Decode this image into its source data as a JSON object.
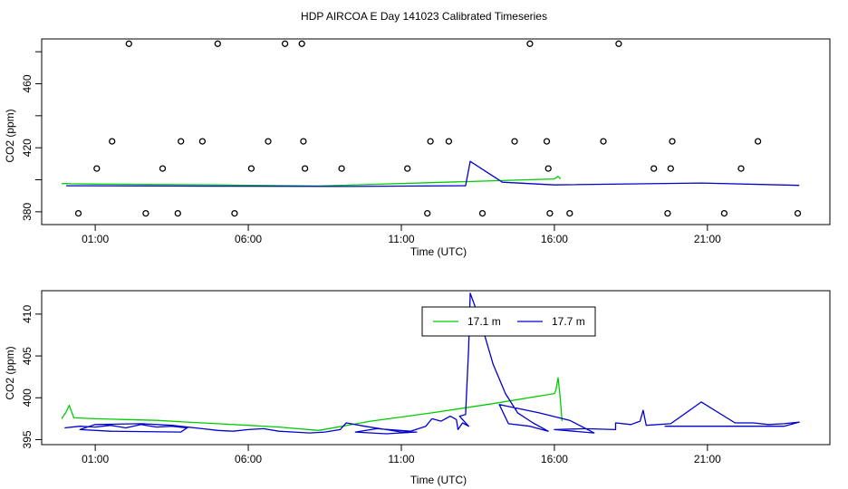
{
  "title": "HDP AIRCOA E  Day 141023  Calibrated Timeseries",
  "colors": {
    "green": "#00cc00",
    "blue": "#0000cc",
    "axis": "#000000"
  },
  "chart_data": [
    {
      "type": "scatter",
      "xlabel": "Time (UTC)",
      "ylabel": "CO2 (ppm)",
      "xlim": [
        -0.75,
        25.0
      ],
      "ylim": [
        372,
        488
      ],
      "x_ticks": [
        {
          "v": 1,
          "label": "01:00"
        },
        {
          "v": 6,
          "label": "06:00"
        },
        {
          "v": 11,
          "label": "11:00"
        },
        {
          "v": 16,
          "label": "16:00"
        },
        {
          "v": 21,
          "label": "21:00"
        }
      ],
      "y_ticks": [
        {
          "v": 380,
          "label": "380"
        },
        {
          "v": 420,
          "label": "420"
        },
        {
          "v": 460,
          "label": "460"
        }
      ],
      "points": [
        [
          0.45,
          379
        ],
        [
          1.05,
          407
        ],
        [
          1.55,
          424
        ],
        [
          2.1,
          485
        ],
        [
          2.65,
          379
        ],
        [
          3.2,
          407
        ],
        [
          3.7,
          379
        ],
        [
          3.8,
          424
        ],
        [
          4.5,
          424
        ],
        [
          5.0,
          485
        ],
        [
          5.55,
          379
        ],
        [
          6.1,
          407
        ],
        [
          6.65,
          424
        ],
        [
          7.2,
          485
        ],
        [
          7.75,
          485
        ],
        [
          7.8,
          424
        ],
        [
          7.85,
          407
        ],
        [
          9.05,
          407
        ],
        [
          11.2,
          407
        ],
        [
          11.85,
          379
        ],
        [
          11.95,
          424
        ],
        [
          12.55,
          424
        ],
        [
          13.65,
          379
        ],
        [
          14.7,
          424
        ],
        [
          15.2,
          485
        ],
        [
          15.75,
          424
        ],
        [
          15.8,
          407
        ],
        [
          15.85,
          379
        ],
        [
          16.5,
          379
        ],
        [
          17.6,
          424
        ],
        [
          18.1,
          485
        ],
        [
          19.25,
          407
        ],
        [
          19.7,
          379
        ],
        [
          19.8,
          407
        ],
        [
          19.85,
          424
        ],
        [
          21.55,
          379
        ],
        [
          22.1,
          407
        ],
        [
          22.65,
          424
        ],
        [
          23.95,
          379
        ]
      ],
      "series": [
        {
          "name": "17.1 m",
          "color": "#00cc00",
          "points": [
            [
              -0.1,
              397.5
            ],
            [
              0.05,
              397.7
            ],
            [
              0.2,
              397.5
            ],
            [
              1.0,
              397.3
            ],
            [
              5.0,
              396.8
            ],
            [
              8.3,
              396.1
            ],
            [
              16.0,
              400.5
            ],
            [
              16.12,
              402.1
            ],
            [
              16.2,
              400.5
            ]
          ]
        },
        {
          "name": "17.7 m",
          "color": "#0000cc",
          "points": [
            [
              0.05,
              396.3
            ],
            [
              5.0,
              396.0
            ],
            [
              9.2,
              395.8
            ],
            [
              13.1,
              396.3
            ],
            [
              13.25,
              411.5
            ],
            [
              14.3,
              398.5
            ],
            [
              16.0,
              396.8
            ],
            [
              20.8,
              398.0
            ],
            [
              24.0,
              396.5
            ]
          ]
        }
      ]
    },
    {
      "type": "line",
      "xlabel": "Time (UTC)",
      "ylabel": "CO2 (ppm)",
      "xlim": [
        -0.75,
        25.0
      ],
      "ylim": [
        394.4,
        412.8
      ],
      "x_ticks": [
        {
          "v": 1,
          "label": "01:00"
        },
        {
          "v": 6,
          "label": "06:00"
        },
        {
          "v": 11,
          "label": "11:00"
        },
        {
          "v": 16,
          "label": "16:00"
        },
        {
          "v": 21,
          "label": "21:00"
        }
      ],
      "y_ticks": [
        {
          "v": 395,
          "label": "395"
        },
        {
          "v": 400,
          "label": "400"
        },
        {
          "v": 405,
          "label": "405"
        },
        {
          "v": 410,
          "label": "410"
        }
      ],
      "legend": {
        "position": "top-center"
      },
      "series": [
        {
          "name": "17.1 m",
          "color": "#00cc00",
          "points": [
            [
              -0.1,
              397.5
            ],
            [
              0.05,
              398.3
            ],
            [
              0.15,
              399.1
            ],
            [
              0.3,
              397.6
            ],
            [
              1.0,
              397.5
            ],
            [
              2.0,
              397.4
            ],
            [
              3.0,
              397.3
            ],
            [
              4.0,
              397.1
            ],
            [
              5.0,
              396.9
            ],
            [
              6.0,
              396.7
            ],
            [
              7.0,
              396.5
            ],
            [
              8.3,
              396.1
            ],
            [
              10.0,
              397.2
            ],
            [
              12.0,
              398.2
            ],
            [
              14.0,
              399.3
            ],
            [
              15.5,
              400.2
            ],
            [
              16.0,
              400.5
            ],
            [
              16.05,
              400.9
            ],
            [
              16.12,
              402.4
            ],
            [
              16.18,
              400.4
            ],
            [
              16.25,
              397.2
            ]
          ]
        },
        {
          "name": "17.7 m",
          "color": "#0000cc",
          "points": [
            [
              0.0,
              396.4
            ],
            [
              0.5,
              396.6
            ],
            [
              1.0,
              396.5
            ],
            [
              1.5,
              396.7
            ],
            [
              2.0,
              396.4
            ],
            [
              2.5,
              396.8
            ],
            [
              3.0,
              396.5
            ],
            [
              3.5,
              396.6
            ],
            [
              4.0,
              396.4
            ],
            [
              3.8,
              395.9
            ],
            [
              1.5,
              396.0
            ],
            [
              0.5,
              396.2
            ],
            [
              1.0,
              396.8
            ],
            [
              2.5,
              396.9
            ],
            [
              3.5,
              396.7
            ],
            [
              4.5,
              396.3
            ],
            [
              5.0,
              396.1
            ],
            [
              5.5,
              396.0
            ],
            [
              6.0,
              396.2
            ],
            [
              6.5,
              396.3
            ],
            [
              7.0,
              396.0
            ],
            [
              7.5,
              395.9
            ],
            [
              8.0,
              395.8
            ],
            [
              8.5,
              395.9
            ],
            [
              9.0,
              396.2
            ],
            [
              9.2,
              397.0
            ],
            [
              9.8,
              396.6
            ],
            [
              10.5,
              396.2
            ],
            [
              11.0,
              395.9
            ],
            [
              11.5,
              395.9
            ],
            [
              10.5,
              395.7
            ],
            [
              9.5,
              395.9
            ],
            [
              10.2,
              396.3
            ],
            [
              11.3,
              396.0
            ],
            [
              11.8,
              396.6
            ],
            [
              12.0,
              397.5
            ],
            [
              12.3,
              397.2
            ],
            [
              12.6,
              397.8
            ],
            [
              12.8,
              397.4
            ],
            [
              12.85,
              396.2
            ],
            [
              13.0,
              397.0
            ],
            [
              13.2,
              396.6
            ],
            [
              12.9,
              397.8
            ],
            [
              13.1,
              398.0
            ],
            [
              13.2,
              406.0
            ],
            [
              13.25,
              412.5
            ],
            [
              13.6,
              409.0
            ],
            [
              14.0,
              404.0
            ],
            [
              14.4,
              400.5
            ],
            [
              14.8,
              398.2
            ],
            [
              15.3,
              397.0
            ],
            [
              15.8,
              396.0
            ],
            [
              15.2,
              396.6
            ],
            [
              14.5,
              396.9
            ],
            [
              14.2,
              399.2
            ],
            [
              15.5,
              398.2
            ],
            [
              16.5,
              397.3
            ],
            [
              17.3,
              395.8
            ],
            [
              16.0,
              396.2
            ],
            [
              17.0,
              396.3
            ],
            [
              18.0,
              396.2
            ],
            [
              18.0,
              397.0
            ],
            [
              18.5,
              396.8
            ],
            [
              18.8,
              397.2
            ],
            [
              18.9,
              398.5
            ],
            [
              19.0,
              396.7
            ],
            [
              19.8,
              396.9
            ],
            [
              20.8,
              399.5
            ],
            [
              21.9,
              397.0
            ],
            [
              22.5,
              397.0
            ],
            [
              23.0,
              396.8
            ],
            [
              23.5,
              396.9
            ],
            [
              24.0,
              397.1
            ],
            [
              23.5,
              396.6
            ],
            [
              22.0,
              396.6
            ],
            [
              20.8,
              396.6
            ],
            [
              19.6,
              396.6
            ]
          ]
        }
      ]
    }
  ]
}
